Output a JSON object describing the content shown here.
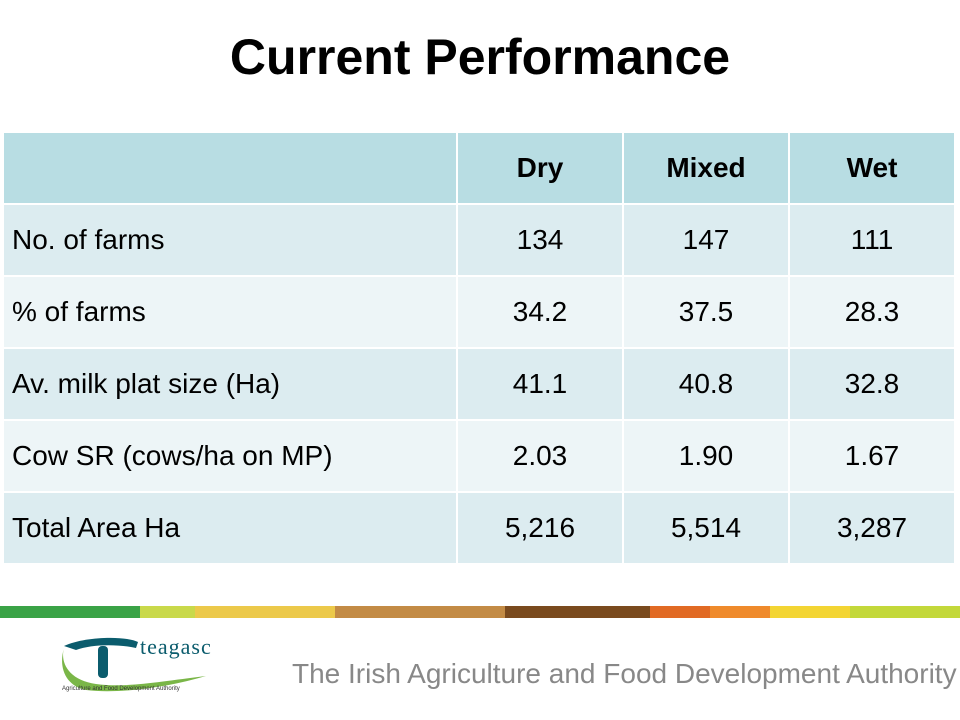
{
  "title": "Current Performance",
  "table": {
    "headers": [
      "",
      "Dry",
      "Mixed",
      "Wet"
    ],
    "rows": [
      {
        "label": "No. of farms",
        "values": [
          "134",
          "147",
          "111"
        ]
      },
      {
        "label": "% of farms",
        "values": [
          "34.2",
          "37.5",
          "28.3"
        ]
      },
      {
        "label": "Av. milk plat size (Ha)",
        "values": [
          "41.1",
          "40.8",
          "32.8"
        ]
      },
      {
        "label": "Cow SR (cows/ha on MP)",
        "values": [
          "2.03",
          "1.90",
          "1.67"
        ]
      },
      {
        "label": "Total Area Ha",
        "values": [
          "5,216",
          "5,514",
          "3,287"
        ]
      }
    ]
  },
  "footer": {
    "logo_name": "teagasc",
    "logo_tagline": "Agriculture and Food Development Authority",
    "authority_text": "The Irish Agriculture and Food Development Authority"
  },
  "colors": {
    "header_bg": "#b8dde3",
    "row_odd": "#dcecf0",
    "row_even": "#edf5f7",
    "logo_teal": "#0b5c6d",
    "logo_green": "#7ab648"
  }
}
